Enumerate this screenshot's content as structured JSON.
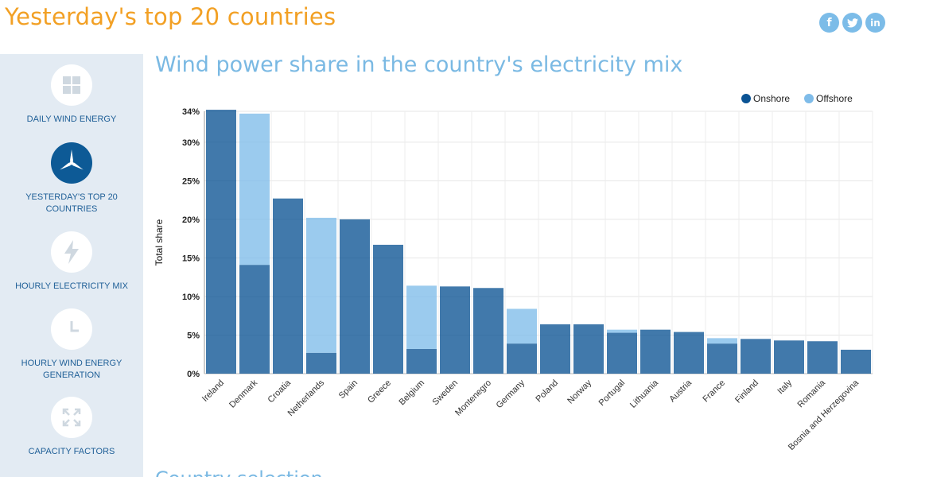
{
  "header": {
    "title": "Yesterday's top 20 countries"
  },
  "social": [
    {
      "name": "facebook-icon",
      "glyph": "f"
    },
    {
      "name": "twitter-icon",
      "glyph": ""
    },
    {
      "name": "linkedin-icon",
      "glyph": "in"
    }
  ],
  "sidebar": {
    "items": [
      {
        "label": "DAILY WIND ENERGY",
        "icon": "grid-icon",
        "active": false
      },
      {
        "label": "YESTERDAY'S TOP 20 COUNTRIES",
        "icon": "wind-turbine-icon",
        "active": true
      },
      {
        "label": "HOURLY ELECTRICITY MIX",
        "icon": "lightning-icon",
        "active": false
      },
      {
        "label": "HOURLY WIND ENERGY GENERATION",
        "icon": "clock-icon",
        "active": false
      },
      {
        "label": "CAPACITY FACTORS",
        "icon": "expand-icon",
        "active": false
      }
    ]
  },
  "main": {
    "chart_title": "Wind power share in the country's electricity mix",
    "next_section_title": "Country selection"
  },
  "chart_data": {
    "type": "bar",
    "stacked": true,
    "categories": [
      "Ireland",
      "Denmark",
      "Croatia",
      "Netherlands",
      "Spain",
      "Greece",
      "Belgium",
      "Sweden",
      "Montenegro",
      "Germany",
      "Poland",
      "Norway",
      "Portugal",
      "Lithuania",
      "Austria",
      "France",
      "Finland",
      "Italy",
      "Romania",
      "Bosnia and Herzegovina"
    ],
    "series": [
      {
        "name": "Onshore",
        "color": "#0b5394",
        "values": [
          34.2,
          14.1,
          22.7,
          2.7,
          20.0,
          16.7,
          3.2,
          11.3,
          11.1,
          3.9,
          6.4,
          6.4,
          5.3,
          5.7,
          5.4,
          3.9,
          4.5,
          4.3,
          4.2,
          3.1
        ]
      },
      {
        "name": "Offshore",
        "color": "#7fbce9",
        "values": [
          0,
          19.6,
          0,
          17.5,
          0,
          0,
          8.2,
          0,
          0,
          4.5,
          0,
          0,
          0.4,
          0,
          0,
          0.7,
          0,
          0,
          0,
          0
        ]
      }
    ],
    "ylabel": "Total share",
    "xlabel": "",
    "ylim": [
      0,
      34
    ],
    "yticks": [
      "0%",
      "5%",
      "10%",
      "15%",
      "20%",
      "25%",
      "30%",
      "34%"
    ],
    "ytick_values": [
      0,
      5,
      10,
      15,
      20,
      25,
      30,
      34
    ],
    "grid": true,
    "legend_position": "top-right"
  }
}
